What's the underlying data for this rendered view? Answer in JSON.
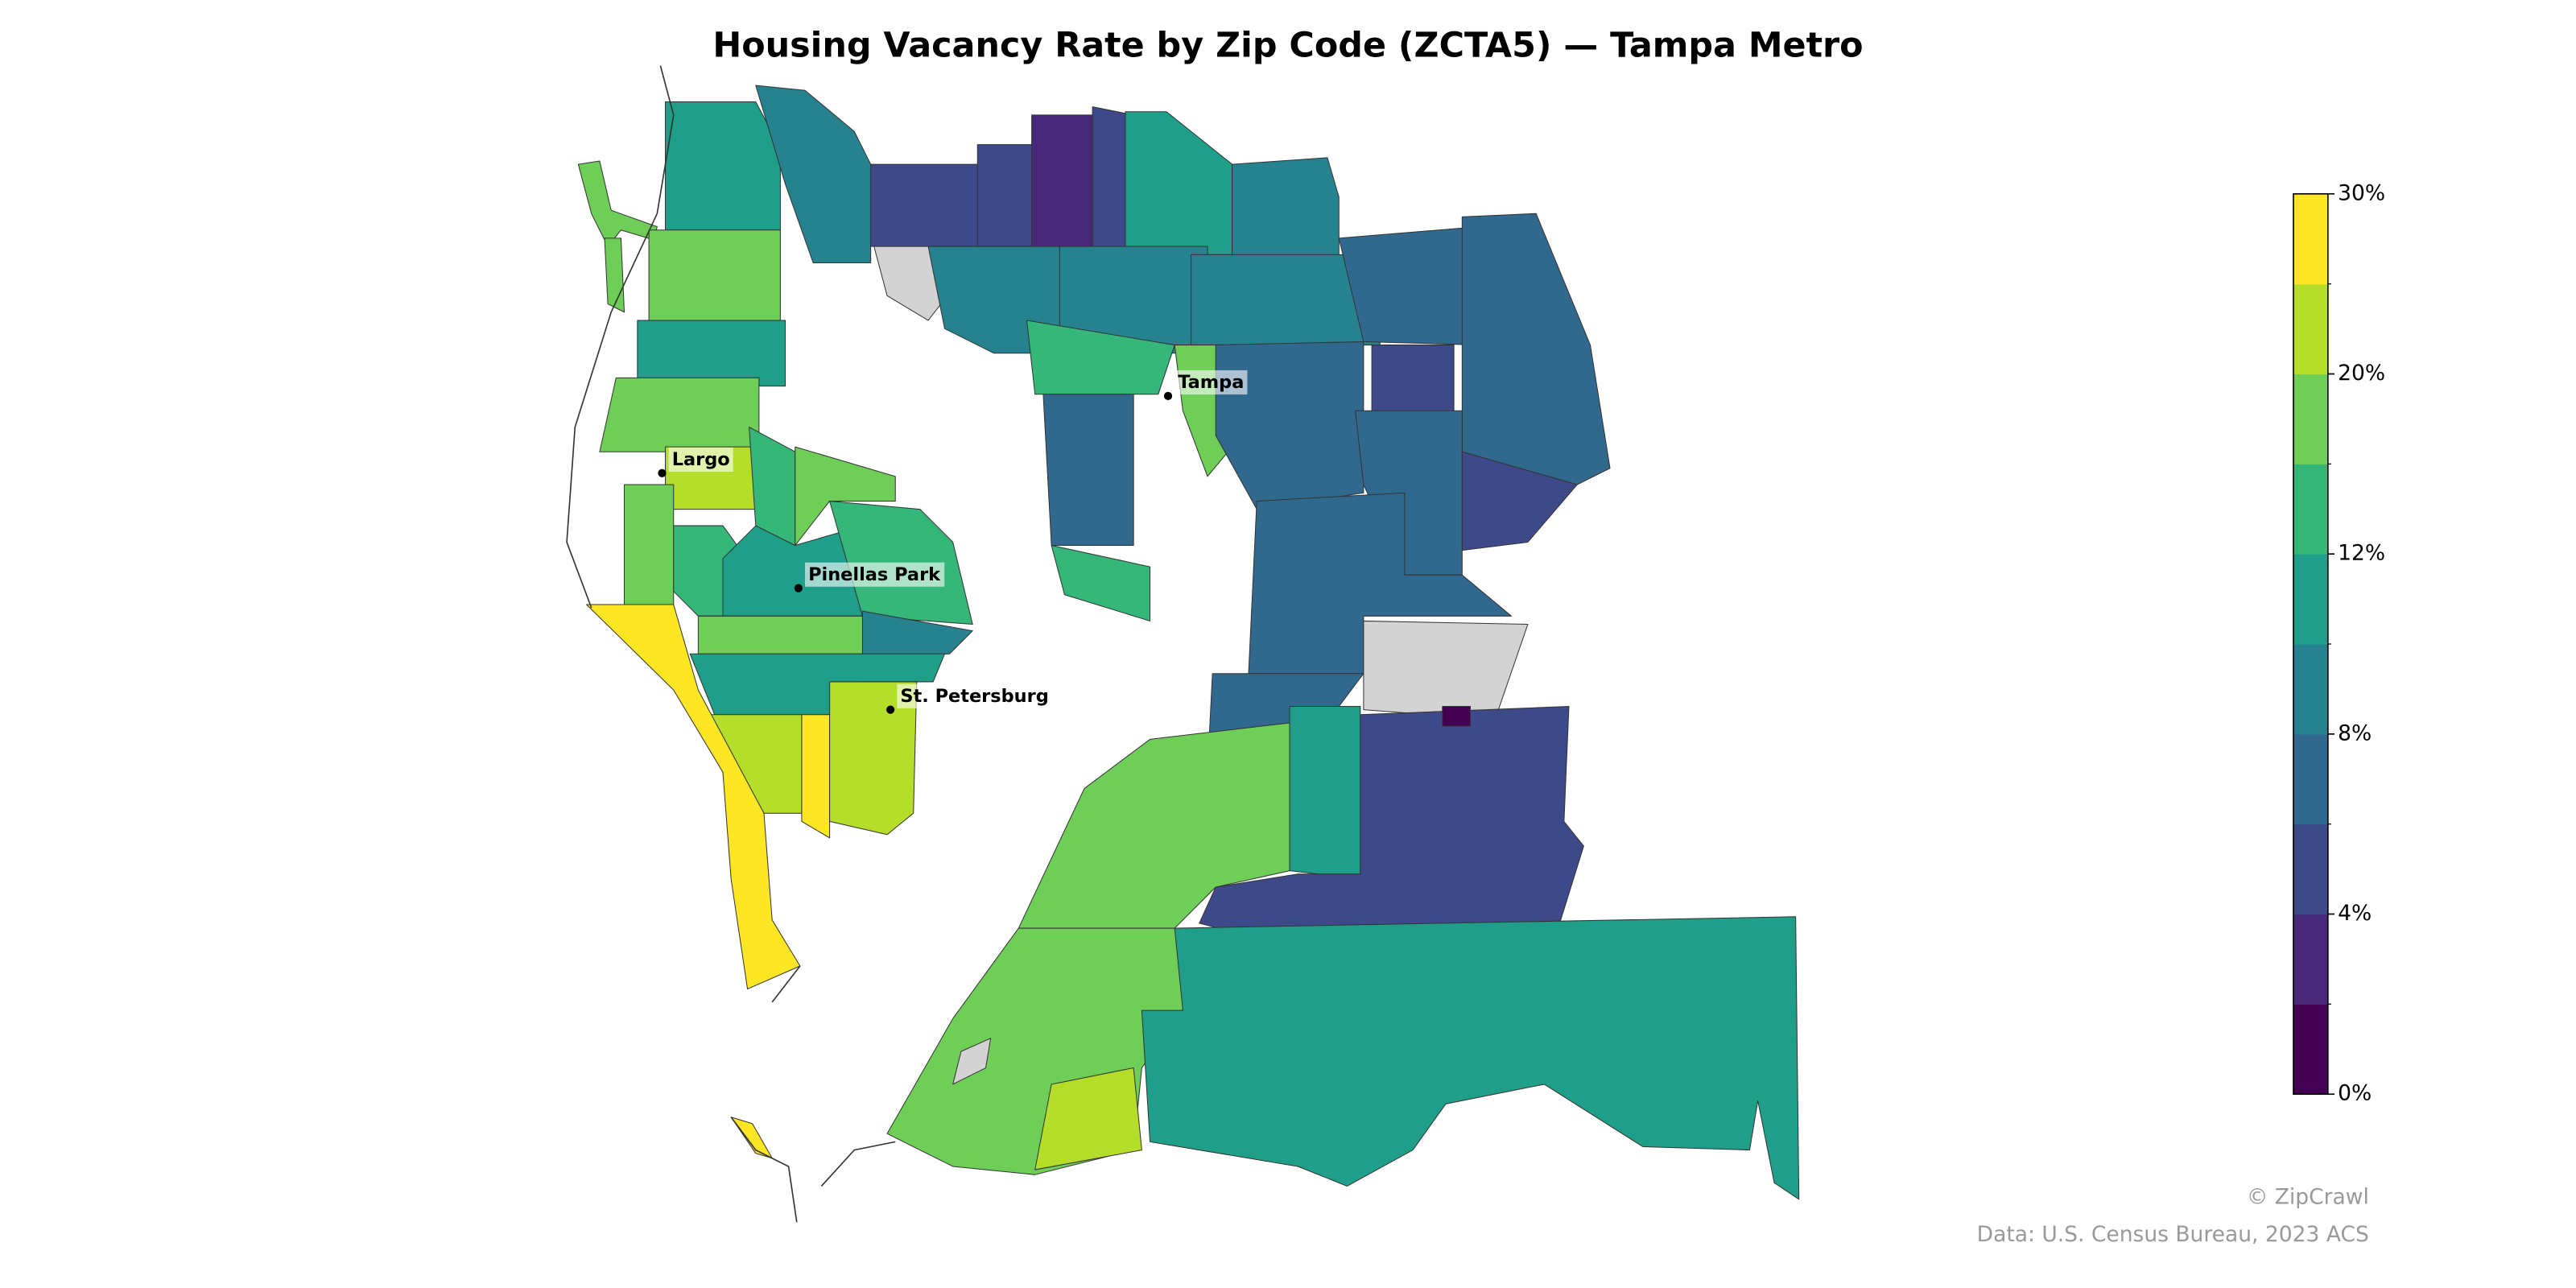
{
  "map": {
    "title": "Housing Vacancy Rate by Zip Code (ZCTA5) — Tampa Metro",
    "cities": [
      {
        "name": "Tampa"
      },
      {
        "name": "Largo"
      },
      {
        "name": "Pinellas Park"
      },
      {
        "name": "St. Petersburg"
      }
    ],
    "colorbar": {
      "colors": [
        "#440154",
        "#482878",
        "#3e4989",
        "#31688e",
        "#26828e",
        "#1f9e89",
        "#35b779",
        "#6ece58",
        "#b5de2b",
        "#fde725"
      ],
      "ticks": [
        {
          "value": 0,
          "label": "0%"
        },
        {
          "value": 4,
          "label": "4%"
        },
        {
          "value": 8,
          "label": "8%"
        },
        {
          "value": 12,
          "label": "12%"
        },
        {
          "value": 20,
          "label": "20%"
        },
        {
          "value": 30,
          "label": "30%"
        }
      ]
    },
    "credit": "© ZipCrawl",
    "source": "Data: U.S. Census Bureau, 2023 ACS"
  }
}
